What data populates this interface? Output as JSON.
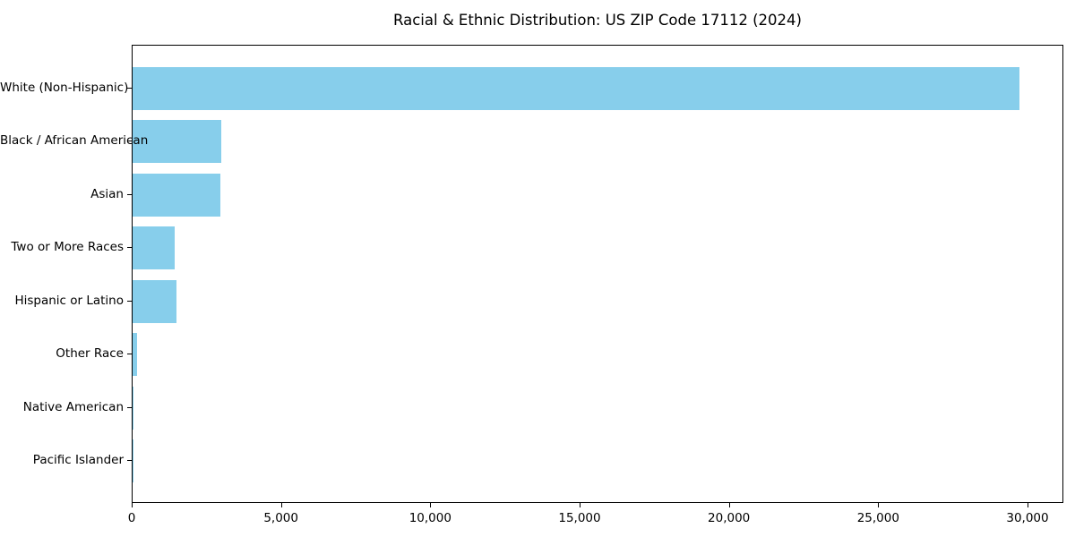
{
  "chart_data": {
    "type": "bar",
    "orientation": "horizontal",
    "title": "Racial & Ethnic Distribution: US ZIP Code 17112 (2024)",
    "categories": [
      "White (Non-Hispanic)",
      "Black / African American",
      "Asian",
      "Two or More Races",
      "Hispanic or Latino",
      "Other Race",
      "Native American",
      "Pacific Islander"
    ],
    "values": [
      29690,
      2960,
      2940,
      1410,
      1460,
      150,
      30,
      10
    ],
    "xlabel": "",
    "ylabel": "",
    "xlim": [
      0,
      31200
    ],
    "x_ticks": [
      0,
      5000,
      10000,
      15000,
      20000,
      25000,
      30000
    ],
    "x_tick_labels": [
      "0",
      "5,000",
      "10,000",
      "15,000",
      "20,000",
      "25,000",
      "30,000"
    ],
    "grid": false,
    "legend": false,
    "bar_color": "#87CEEB",
    "axis_color": "#000000",
    "text_color": "#000000",
    "background_color": "#ffffff"
  }
}
